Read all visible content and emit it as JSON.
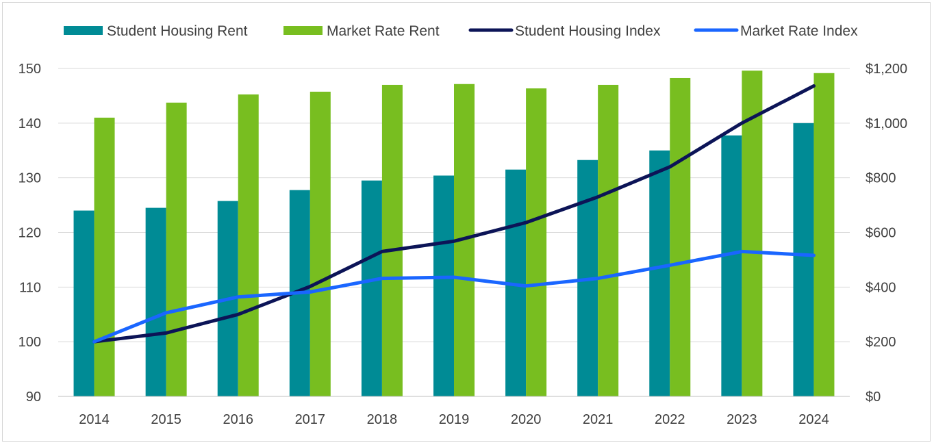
{
  "chart_data": {
    "type": "bar",
    "title": "",
    "categories": [
      "2014",
      "2015",
      "2016",
      "2017",
      "2018",
      "2019",
      "2020",
      "2021",
      "2022",
      "2023",
      "2024"
    ],
    "series": [
      {
        "name": "Student Housing Rent",
        "kind": "bar",
        "axis": "right",
        "color": "#008B95",
        "values": [
          680,
          690,
          715,
          755,
          790,
          808,
          830,
          865,
          900,
          955,
          1000
        ]
      },
      {
        "name": "Market Rate Rent",
        "kind": "bar",
        "axis": "right",
        "color": "#78BE20",
        "values": [
          1020,
          1075,
          1105,
          1115,
          1140,
          1143,
          1127,
          1140,
          1165,
          1192,
          1183
        ]
      },
      {
        "name": "Student Housing Index",
        "kind": "line",
        "axis": "left",
        "color": "#0C1457",
        "values": [
          100,
          101.6,
          105,
          110.1,
          116.5,
          118.4,
          121.8,
          126.5,
          132,
          140,
          146.8
        ]
      },
      {
        "name": "Market Rate Index",
        "kind": "line",
        "axis": "left",
        "color": "#1A66FF",
        "values": [
          100,
          105.3,
          108.2,
          109.1,
          111.6,
          111.8,
          110.2,
          111.6,
          114,
          116.5,
          115.8
        ]
      }
    ],
    "y_left": {
      "min": 90,
      "max": 150,
      "step": 10,
      "ticks": [
        "90",
        "100",
        "110",
        "120",
        "130",
        "140",
        "150"
      ]
    },
    "y_right": {
      "min": 0,
      "max": 1200,
      "step": 200,
      "ticks": [
        "$0",
        "$200",
        "$400",
        "$600",
        "$800",
        "$1,000",
        "$1,200"
      ]
    },
    "grid": true,
    "legend_position": "top"
  }
}
